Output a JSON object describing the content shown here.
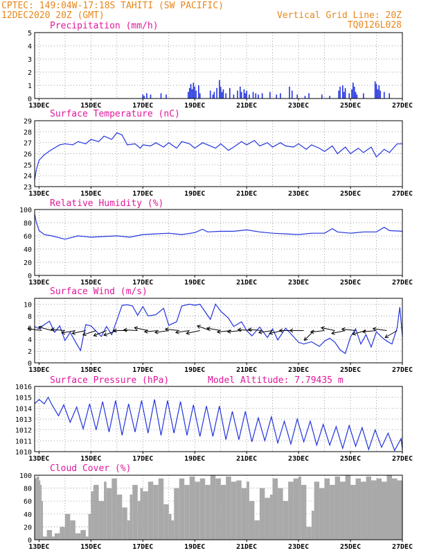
{
  "header": {
    "line1": "CPTEC:   149:04W-17:18S  TAHITI (SW PACIFIC)",
    "line2_left": "12DEC2020 20Z (GMT)",
    "line2_right": "Vertical Grid Line: 20Z",
    "line3_right": "TQ0126L028"
  },
  "colors": {
    "header": "#e8861a",
    "panel_title": "#e0189a",
    "series": "#2233dd",
    "cloud": "#a9a9a9"
  },
  "x_ticks": [
    "13DEC",
    "15DEC",
    "17DEC",
    "19DEC",
    "21DEC",
    "23DEC",
    "25DEC",
    "27DEC"
  ],
  "chart_data": [
    {
      "type": "bar",
      "title": "Precipitation (mm/h)",
      "ylim": [
        0,
        5
      ],
      "yticks": [
        "0",
        "1",
        "2",
        "3",
        "4",
        "5"
      ],
      "x_range_days": [
        12.83,
        27.0
      ],
      "x": [
        17.0,
        17.05,
        17.15,
        17.3,
        17.7,
        17.9,
        18.75,
        18.8,
        18.85,
        18.9,
        18.95,
        19.0,
        19.05,
        19.15,
        19.2,
        19.6,
        19.7,
        19.75,
        19.85,
        19.95,
        20.0,
        20.05,
        20.1,
        20.2,
        20.35,
        20.5,
        20.65,
        20.75,
        20.8,
        20.9,
        20.95,
        21.0,
        21.1,
        21.25,
        21.35,
        21.45,
        21.6,
        21.9,
        22.15,
        22.3,
        22.65,
        22.75,
        22.95,
        23.25,
        23.4,
        23.9,
        24.2,
        24.55,
        24.6,
        24.7,
        24.75,
        24.8,
        24.95,
        25.05,
        25.1,
        25.15,
        25.2,
        25.25,
        25.5,
        25.95,
        26.0,
        26.05,
        26.1,
        26.15,
        26.3,
        26.5
      ],
      "values": [
        0.3,
        0.2,
        0.4,
        0.3,
        0.4,
        0.3,
        0.5,
        0.8,
        1.1,
        0.7,
        1.2,
        0.9,
        0.6,
        1.0,
        0.4,
        0.6,
        0.3,
        0.5,
        0.8,
        1.4,
        0.9,
        0.5,
        0.7,
        0.4,
        0.8,
        0.3,
        0.6,
        0.9,
        0.5,
        0.7,
        0.4,
        0.6,
        0.3,
        0.5,
        0.4,
        0.3,
        0.4,
        0.5,
        0.3,
        0.4,
        0.9,
        0.6,
        0.3,
        0.2,
        0.4,
        0.3,
        0.2,
        0.6,
        0.9,
        1.0,
        0.5,
        0.8,
        0.4,
        0.7,
        1.2,
        0.9,
        0.5,
        0.3,
        0.4,
        1.3,
        1.1,
        0.7,
        1.0,
        0.6,
        0.5,
        0.4
      ]
    },
    {
      "type": "line",
      "title": "Surface Temperature (nC)",
      "ylim": [
        23,
        29
      ],
      "yticks": [
        "23",
        "24",
        "25",
        "26",
        "27",
        "28",
        "29"
      ],
      "x": [
        12.83,
        12.9,
        13.0,
        13.2,
        13.5,
        13.8,
        14.0,
        14.3,
        14.5,
        14.8,
        15.0,
        15.3,
        15.5,
        15.8,
        16.0,
        16.2,
        16.4,
        16.7,
        16.9,
        17.0,
        17.3,
        17.5,
        17.8,
        18.0,
        18.3,
        18.5,
        18.8,
        19.0,
        19.3,
        19.5,
        19.8,
        20.0,
        20.3,
        20.5,
        20.8,
        21.0,
        21.3,
        21.5,
        21.8,
        22.0,
        22.3,
        22.5,
        22.8,
        23.0,
        23.3,
        23.5,
        23.8,
        24.0,
        24.3,
        24.5,
        24.8,
        25.0,
        25.3,
        25.5,
        25.8,
        26.0,
        26.3,
        26.5,
        26.8,
        27.0
      ],
      "values": [
        23.6,
        24.6,
        25.4,
        25.9,
        26.4,
        26.8,
        26.9,
        26.8,
        27.1,
        26.9,
        27.3,
        27.1,
        27.6,
        27.3,
        27.9,
        27.7,
        26.8,
        26.9,
        26.5,
        26.8,
        26.7,
        27.0,
        26.6,
        27.0,
        26.5,
        27.1,
        26.9,
        26.5,
        27.0,
        26.8,
        26.5,
        26.9,
        26.3,
        26.6,
        27.1,
        26.8,
        27.2,
        26.7,
        27.0,
        26.6,
        27.0,
        26.7,
        26.6,
        26.9,
        26.4,
        26.8,
        26.5,
        26.2,
        26.7,
        26.0,
        26.6,
        26.0,
        26.5,
        26.1,
        26.6,
        25.7,
        26.4,
        26.1,
        26.9,
        26.9
      ]
    },
    {
      "type": "line",
      "title": "Relative Humidity (%)",
      "ylim": [
        0,
        100
      ],
      "yticks": [
        "0",
        "20",
        "40",
        "60",
        "80",
        "100"
      ],
      "x": [
        12.83,
        12.9,
        13.0,
        13.2,
        13.5,
        14.0,
        14.5,
        15.0,
        15.5,
        16.0,
        16.5,
        17.0,
        17.5,
        18.0,
        18.5,
        19.0,
        19.3,
        19.5,
        20.0,
        20.5,
        21.0,
        21.5,
        22.0,
        22.5,
        23.0,
        23.5,
        24.0,
        24.3,
        24.5,
        25.0,
        25.5,
        26.0,
        26.3,
        26.5,
        27.0
      ],
      "values": [
        93,
        80,
        68,
        62,
        60,
        55,
        60,
        58,
        59,
        60,
        58,
        62,
        63,
        64,
        62,
        65,
        70,
        66,
        67,
        67,
        69,
        66,
        64,
        63,
        62,
        64,
        64,
        71,
        66,
        64,
        66,
        66,
        73,
        68,
        67
      ]
    },
    {
      "type": "line",
      "title": "Surface Wind (m/s)",
      "ylim": [
        0,
        11
      ],
      "yticks": [
        "0",
        "2",
        "4",
        "6",
        "8",
        "10"
      ],
      "x": [
        12.83,
        13.0,
        13.2,
        13.4,
        13.6,
        13.8,
        14.0,
        14.2,
        14.4,
        14.6,
        14.8,
        15.0,
        15.2,
        15.4,
        15.6,
        15.8,
        16.0,
        16.2,
        16.4,
        16.6,
        16.8,
        17.0,
        17.2,
        17.5,
        17.8,
        18.0,
        18.3,
        18.5,
        18.8,
        19.0,
        19.2,
        19.4,
        19.6,
        19.8,
        20.0,
        20.3,
        20.5,
        20.8,
        21.0,
        21.2,
        21.5,
        21.8,
        22.0,
        22.2,
        22.5,
        22.8,
        23.0,
        23.2,
        23.5,
        23.8,
        24.0,
        24.2,
        24.4,
        24.6,
        24.8,
        25.0,
        25.2,
        25.4,
        25.6,
        25.8,
        26.0,
        26.2,
        26.4,
        26.6,
        26.8,
        26.9,
        27.0
      ],
      "values": [
        6.2,
        5.8,
        6.5,
        7.1,
        5.2,
        6.3,
        3.8,
        5.2,
        3.6,
        2.1,
        6.5,
        6.3,
        5.4,
        4.5,
        6.2,
        4.8,
        7.3,
        9.8,
        9.9,
        9.7,
        8.1,
        9.6,
        8.0,
        8.2,
        9.3,
        6.4,
        7.0,
        9.7,
        10.0,
        9.8,
        10.0,
        8.7,
        7.4,
        10.0,
        8.8,
        7.6,
        6.2,
        7.0,
        5.5,
        4.6,
        6.1,
        4.3,
        5.8,
        3.9,
        5.9,
        4.5,
        3.5,
        3.2,
        3.6,
        2.8,
        3.7,
        4.2,
        3.5,
        2.2,
        1.6,
        4.4,
        5.8,
        3.2,
        4.8,
        2.7,
        5.3,
        4.4,
        3.7,
        3.2,
        6.0,
        9.5,
        4.5
      ],
      "arrows_x": [
        13.1,
        13.5,
        14.0,
        14.4,
        14.8,
        15.2,
        15.6,
        16.0,
        16.4,
        16.8,
        17.2,
        17.6,
        18.0,
        18.4,
        18.8,
        19.2,
        19.6,
        20.0,
        20.4,
        20.8,
        21.2,
        21.6,
        22.0,
        22.4,
        22.8,
        23.2,
        23.6,
        24.0,
        24.4,
        24.8,
        25.2,
        25.6,
        26.0,
        26.4,
        26.8
      ],
      "arrows_dir": [
        -8,
        -15,
        -5,
        10,
        12,
        18,
        22,
        20,
        0,
        -3,
        -12,
        5,
        8,
        -6,
        8,
        12,
        -20,
        -10,
        6,
        5,
        -4,
        -5,
        8,
        12,
        0,
        0,
        45,
        6,
        -12,
        12,
        -6,
        15,
        5,
        -8,
        30
      ]
    },
    {
      "type": "line",
      "title": "Surface Pressure (hPa)",
      "annotation": "Model Altitude: 7.79435 m",
      "ylim": [
        1010,
        1016
      ],
      "yticks": [
        "1010",
        "1011",
        "1012",
        "1013",
        "1014",
        "1015",
        "1016"
      ],
      "x": [
        12.83,
        13.0,
        13.2,
        13.35,
        13.5,
        13.75,
        13.95,
        14.2,
        14.45,
        14.7,
        14.95,
        15.2,
        15.45,
        15.7,
        15.95,
        16.2,
        16.45,
        16.7,
        16.95,
        17.2,
        17.45,
        17.7,
        17.95,
        18.2,
        18.45,
        18.7,
        18.95,
        19.2,
        19.45,
        19.7,
        19.95,
        20.2,
        20.45,
        20.7,
        20.95,
        21.2,
        21.45,
        21.7,
        21.95,
        22.2,
        22.45,
        22.7,
        22.95,
        23.2,
        23.45,
        23.7,
        23.95,
        24.2,
        24.45,
        24.7,
        24.95,
        25.2,
        25.45,
        25.7,
        25.95,
        26.2,
        26.45,
        26.7,
        26.95,
        27.0
      ],
      "values": [
        1014.4,
        1014.8,
        1014.4,
        1015.0,
        1014.3,
        1013.3,
        1014.3,
        1012.7,
        1014.1,
        1012.1,
        1014.4,
        1012.0,
        1014.6,
        1011.8,
        1014.7,
        1011.5,
        1014.4,
        1011.8,
        1014.7,
        1011.7,
        1014.8,
        1011.5,
        1014.7,
        1011.7,
        1014.6,
        1011.5,
        1014.3,
        1011.4,
        1014.2,
        1011.4,
        1014.2,
        1011.1,
        1013.7,
        1011.1,
        1013.7,
        1010.9,
        1013.1,
        1011.0,
        1013.2,
        1010.8,
        1012.8,
        1010.7,
        1013.0,
        1010.9,
        1012.8,
        1010.6,
        1012.5,
        1010.6,
        1012.3,
        1010.3,
        1012.4,
        1010.5,
        1012.2,
        1010.2,
        1012.0,
        1010.4,
        1011.7,
        1010.1,
        1011.2,
        1010.2
      ]
    },
    {
      "type": "area",
      "title": "Cloud Cover (%)",
      "ylim": [
        0,
        100
      ],
      "yticks": [
        "0",
        "20",
        "40",
        "60",
        "80",
        "100"
      ],
      "x": [
        12.83,
        12.9,
        13.0,
        13.05,
        13.1,
        13.15,
        13.3,
        13.5,
        13.6,
        13.8,
        14.0,
        14.2,
        14.4,
        14.6,
        14.8,
        14.9,
        15.0,
        15.1,
        15.3,
        15.5,
        15.6,
        15.8,
        16.0,
        16.2,
        16.4,
        16.5,
        16.6,
        16.8,
        16.9,
        17.0,
        17.2,
        17.4,
        17.6,
        17.8,
        18.0,
        18.1,
        18.2,
        18.4,
        18.6,
        18.8,
        19.0,
        19.2,
        19.4,
        19.6,
        19.8,
        20.0,
        20.2,
        20.4,
        20.6,
        20.8,
        21.0,
        21.1,
        21.3,
        21.5,
        21.7,
        21.9,
        22.0,
        22.2,
        22.4,
        22.6,
        22.8,
        23.0,
        23.1,
        23.3,
        23.5,
        23.6,
        23.8,
        24.0,
        24.2,
        24.4,
        24.6,
        24.8,
        25.0,
        25.2,
        25.4,
        25.6,
        25.8,
        26.0,
        26.2,
        26.4,
        26.6,
        26.8,
        27.0
      ],
      "values": [
        95,
        98,
        92,
        85,
        60,
        5,
        15,
        5,
        10,
        20,
        40,
        30,
        10,
        15,
        5,
        40,
        75,
        85,
        60,
        90,
        80,
        95,
        70,
        50,
        30,
        70,
        85,
        60,
        80,
        75,
        90,
        85,
        95,
        55,
        40,
        30,
        80,
        95,
        85,
        98,
        90,
        95,
        85,
        100,
        95,
        85,
        98,
        90,
        92,
        80,
        90,
        60,
        30,
        80,
        65,
        70,
        95,
        80,
        60,
        90,
        95,
        98,
        85,
        20,
        45,
        90,
        80,
        95,
        85,
        98,
        90,
        100,
        85,
        95,
        90,
        98,
        92,
        95,
        90,
        100,
        95,
        92,
        95
      ]
    }
  ]
}
